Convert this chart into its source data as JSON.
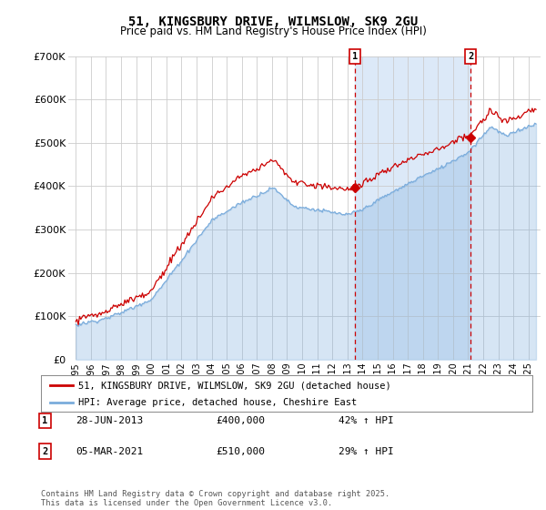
{
  "title_line1": "51, KINGSBURY DRIVE, WILMSLOW, SK9 2GU",
  "title_line2": "Price paid vs. HM Land Registry's House Price Index (HPI)",
  "legend_label1": "51, KINGSBURY DRIVE, WILMSLOW, SK9 2GU (detached house)",
  "legend_label2": "HPI: Average price, detached house, Cheshire East",
  "sale1_label": "1",
  "sale1_date": "28-JUN-2013",
  "sale1_price": 400000,
  "sale1_hpi_pct": "42% ↑ HPI",
  "sale2_label": "2",
  "sale2_date": "05-MAR-2021",
  "sale2_price": 510000,
  "sale2_hpi_pct": "29% ↑ HPI",
  "footer": "Contains HM Land Registry data © Crown copyright and database right 2025.\nThis data is licensed under the Open Government Licence v3.0.",
  "ylim": [
    0,
    700000
  ],
  "yticks": [
    0,
    100000,
    200000,
    300000,
    400000,
    500000,
    600000,
    700000
  ],
  "ytick_labels": [
    "£0",
    "£100K",
    "£200K",
    "£300K",
    "£400K",
    "£500K",
    "£600K",
    "£700K"
  ],
  "plot_bg_color": "#ffffff",
  "fig_bg_color": "#ffffff",
  "line1_color": "#cc0000",
  "line2_color": "#7aacdc",
  "fill_between_sales_color": "#dce9f8",
  "grid_color": "#cccccc",
  "marker_box_color": "#cc0000",
  "sale1_year": 2013.49,
  "sale2_year": 2021.17,
  "xmin": 1994.5,
  "xmax": 2025.8
}
